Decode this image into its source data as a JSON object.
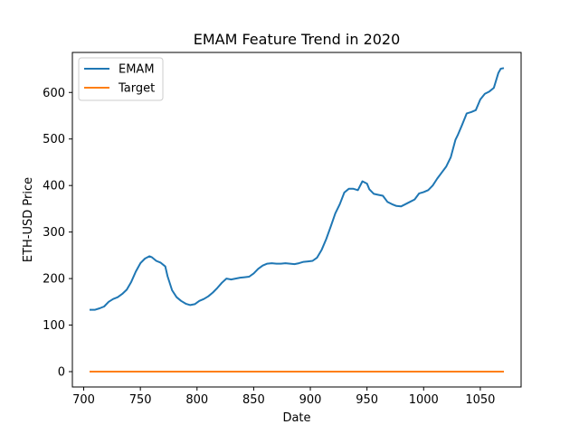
{
  "chart_data": {
    "type": "line",
    "title": "EMAM Feature Trend in 2020",
    "xlabel": "Date",
    "ylabel": "ETH-USD Price",
    "xlim": [
      690,
      1086
    ],
    "ylim": [
      -33,
      686
    ],
    "xticks": [
      700,
      750,
      800,
      850,
      900,
      950,
      1000,
      1050
    ],
    "yticks": [
      0,
      100,
      200,
      300,
      400,
      500,
      600
    ],
    "grid": false,
    "legend_position": "top-left",
    "series": [
      {
        "name": "EMAM",
        "color": "#1f77b4",
        "x": [
          706,
          710,
          714,
          718,
          722,
          726,
          730,
          734,
          738,
          742,
          746,
          750,
          754,
          758,
          760,
          764,
          768,
          772,
          774,
          778,
          782,
          786,
          790,
          794,
          798,
          802,
          806,
          810,
          814,
          818,
          822,
          826,
          830,
          834,
          838,
          842,
          846,
          850,
          854,
          858,
          862,
          866,
          870,
          874,
          878,
          882,
          886,
          890,
          894,
          898,
          902,
          906,
          910,
          914,
          918,
          922,
          926,
          930,
          934,
          938,
          942,
          946,
          950,
          952,
          956,
          960,
          964,
          968,
          972,
          976,
          980,
          984,
          988,
          992,
          996,
          1000,
          1004,
          1008,
          1012,
          1016,
          1020,
          1024,
          1028,
          1030,
          1034,
          1038,
          1042,
          1046,
          1050,
          1054,
          1058,
          1062,
          1066,
          1068,
          1070
        ],
        "y": [
          133,
          133,
          136,
          140,
          150,
          156,
          160,
          167,
          176,
          193,
          215,
          233,
          243,
          248,
          246,
          238,
          234,
          226,
          205,
          175,
          160,
          152,
          146,
          143,
          145,
          152,
          156,
          162,
          170,
          180,
          191,
          200,
          198,
          200,
          202,
          203,
          204,
          211,
          221,
          228,
          232,
          233,
          232,
          232,
          233,
          232,
          231,
          233,
          236,
          237,
          238,
          245,
          262,
          285,
          312,
          340,
          360,
          385,
          393,
          393,
          390,
          409,
          404,
          392,
          382,
          380,
          378,
          365,
          360,
          356,
          355,
          360,
          365,
          370,
          383,
          386,
          390,
          400,
          415,
          428,
          441,
          461,
          498,
          508,
          531,
          555,
          558,
          562,
          585,
          597,
          602,
          610,
          642,
          651,
          652
        ]
      },
      {
        "name": "Target",
        "color": "#ff7f0e",
        "x": [
          706,
          1070
        ],
        "y": [
          0,
          0
        ]
      }
    ]
  }
}
